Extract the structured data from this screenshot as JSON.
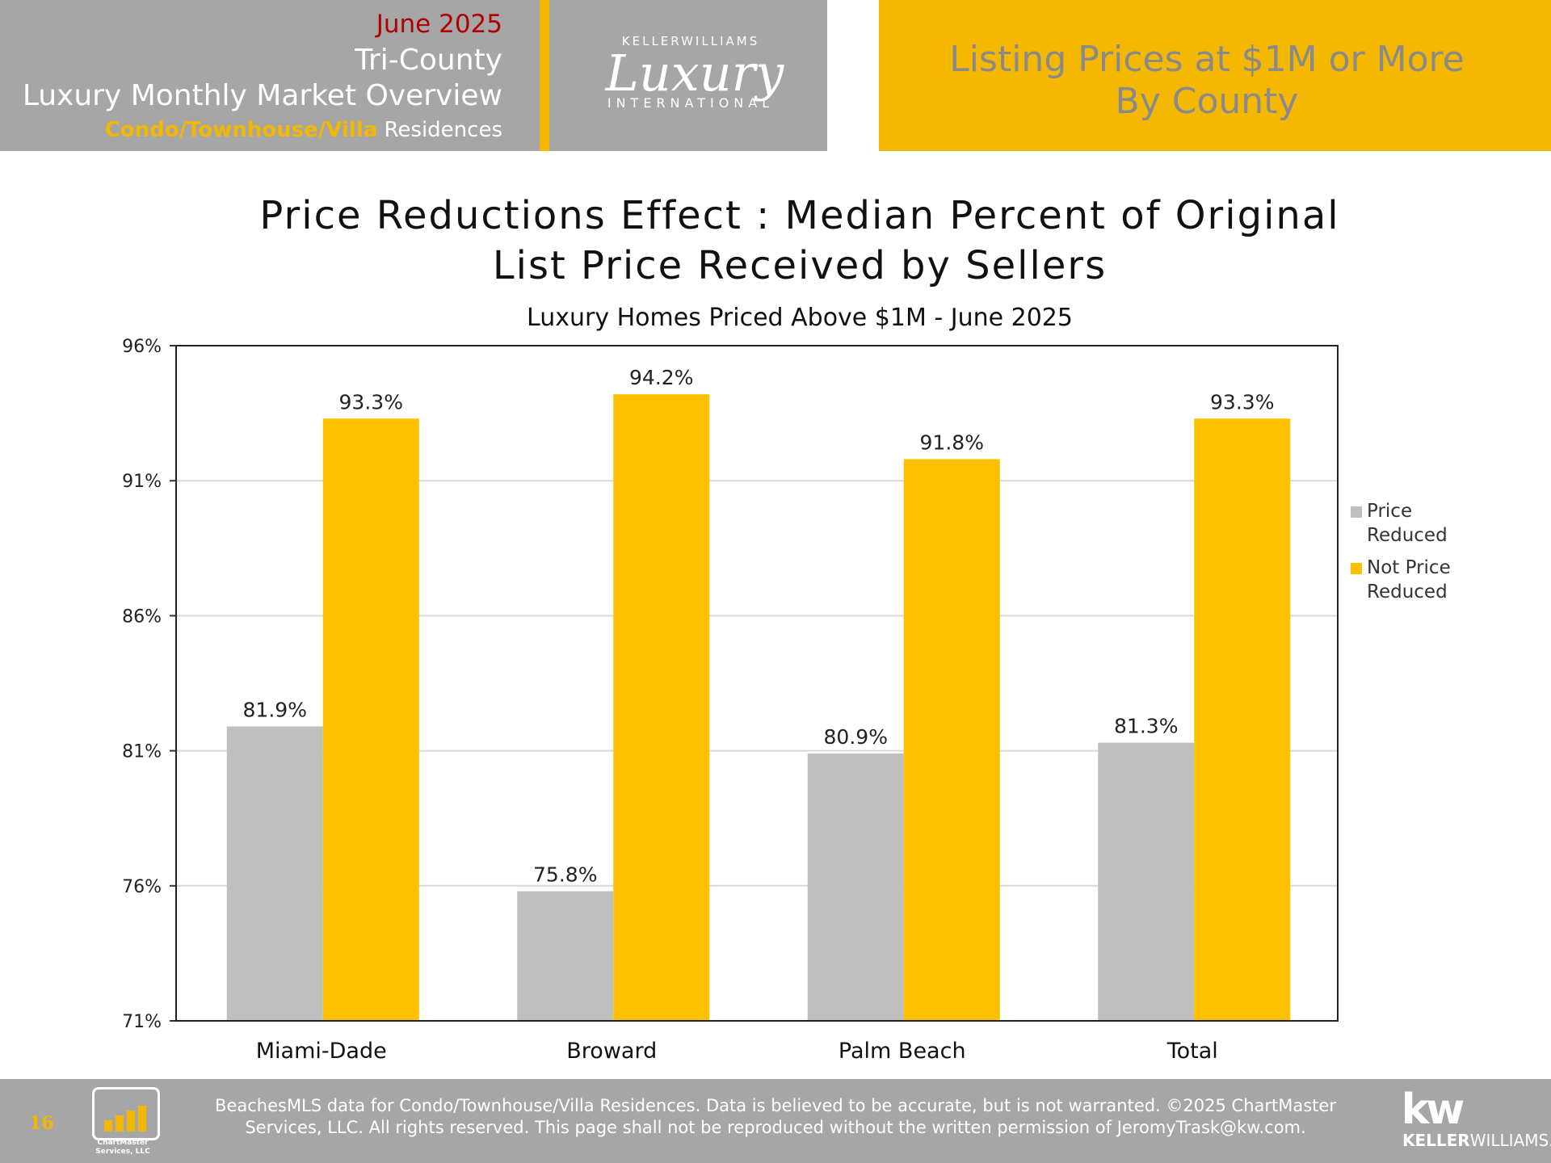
{
  "header": {
    "month": "June 2025",
    "region": "Tri-County",
    "overview": "Luxury Monthly Market Overview",
    "property_type_highlight": "Condo/Townhouse/Villa",
    "property_type_suffix": " Residences",
    "right_title_line1": "Listing Prices at $1M or More",
    "right_title_line2": "By County"
  },
  "logo": {
    "top": "KELLERWILLIAMS",
    "script": "Luxury",
    "bottom": "INTERNATIONAL"
  },
  "chart_data": {
    "type": "bar",
    "title_line1": "Price Reductions Effect : Median Percent of Original",
    "title_line2": "List Price Received by Sellers",
    "subtitle": "Luxury Homes Priced Above $1M - June 2025",
    "categories": [
      "Miami-Dade",
      "Broward",
      "Palm Beach",
      "Total"
    ],
    "series": [
      {
        "name": "Price Reduced",
        "color": "#bfbfbf",
        "values": [
          81.9,
          75.8,
          80.9,
          81.3
        ],
        "labels": [
          "81.9%",
          "75.8%",
          "80.9%",
          "81.3%"
        ]
      },
      {
        "name": "Not Price Reduced",
        "color": "#ffc000",
        "values": [
          93.3,
          94.2,
          91.8,
          93.3
        ],
        "labels": [
          "93.3%",
          "94.2%",
          "91.8%",
          "93.3%"
        ]
      }
    ],
    "ylim": [
      71,
      96
    ],
    "yticks": [
      96,
      91,
      86,
      81,
      76,
      71
    ],
    "ytick_labels": [
      "96%",
      "91%",
      "86%",
      "81%",
      "76%",
      "71%"
    ],
    "grid": true,
    "legend_position": "right",
    "legend_labels": [
      [
        "Price",
        "Reduced"
      ],
      [
        "Not Price",
        "Reduced"
      ]
    ]
  },
  "footer": {
    "page_number": "16",
    "chartmaster_line1": "ChartMaster",
    "chartmaster_line2": "Services, LLC",
    "disclaimer_line1": "BeachesMLS data for Condo/Townhouse/Villa Residences.  Data is believed to be accurate, but is not warranted.   ©2025  ChartMaster",
    "disclaimer_line2": "Services, LLC.  All rights reserved. This page shall not be reproduced without the written permission of JeromyTrask@kw.com.",
    "kw_mark": "kw",
    "kw_keller": "KELLER",
    "kw_williams": "WILLIAMS."
  },
  "colors": {
    "gold": "#f5b800",
    "header_gray": "#a6a6a6",
    "month_red": "#b00000"
  }
}
